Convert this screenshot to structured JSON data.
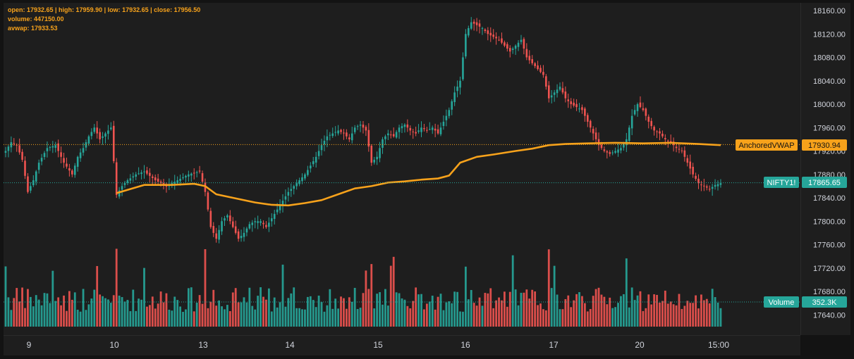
{
  "legend": {
    "ohlc": "open: 17932.65 | high: 17959.90 | low: 17932.65 | close: 17956.50",
    "volume": "volume: 447150.00",
    "avwap": "avwap: 17933.53"
  },
  "colors": {
    "up": "#26a69a",
    "down": "#ef5350",
    "vwap": "#f7a21b",
    "background": "#1e1e1e",
    "text": "#d1d4dc",
    "label_teal": "#26a69a"
  },
  "price_axis": {
    "labels": [
      "18160.00",
      "18120.00",
      "18080.00",
      "18040.00",
      "18000.00",
      "17960.00",
      "17920.00",
      "17880.00",
      "17840.00",
      "17800.00",
      "17760.00",
      "17720.00",
      "17680.00",
      "17640.00"
    ]
  },
  "time_axis": {
    "labels": [
      "9",
      "10",
      "13",
      "14",
      "15",
      "16",
      "17",
      "20",
      "15:00"
    ]
  },
  "badges": {
    "vwap_name": "AnchoredVWAP",
    "vwap_value": "17930.94",
    "symbol_name": "NIFTY1!",
    "symbol_value": "17865.65",
    "volume_name": "Volume",
    "volume_value": "352.3K"
  },
  "chart_data": {
    "type": "candlestick",
    "ylim": [
      17620,
      18170
    ],
    "date_labels": [
      "9",
      "10",
      "13",
      "14",
      "15",
      "16",
      "17",
      "20",
      "15:00"
    ],
    "price_path": [
      [
        0,
        17920
      ],
      [
        2,
        17935
      ],
      [
        4,
        17930
      ],
      [
        6,
        17905
      ],
      [
        8,
        17850
      ],
      [
        10,
        17870
      ],
      [
        12,
        17900
      ],
      [
        15,
        17925
      ],
      [
        18,
        17930
      ],
      [
        21,
        17900
      ],
      [
        24,
        17880
      ],
      [
        26,
        17910
      ],
      [
        28,
        17925
      ],
      [
        30,
        17945
      ],
      [
        32,
        17960
      ],
      [
        34,
        17940
      ],
      [
        36,
        17950
      ],
      [
        38,
        17960
      ],
      [
        40,
        17845
      ],
      [
        42,
        17860
      ],
      [
        44,
        17870
      ],
      [
        47,
        17880
      ],
      [
        50,
        17885
      ],
      [
        54,
        17870
      ],
      [
        58,
        17860
      ],
      [
        62,
        17870
      ],
      [
        66,
        17880
      ],
      [
        70,
        17885
      ],
      [
        72,
        17850
      ],
      [
        74,
        17790
      ],
      [
        76,
        17770
      ],
      [
        78,
        17800
      ],
      [
        80,
        17810
      ],
      [
        82,
        17790
      ],
      [
        84,
        17770
      ],
      [
        86,
        17780
      ],
      [
        88,
        17795
      ],
      [
        90,
        17800
      ],
      [
        92,
        17800
      ],
      [
        94,
        17790
      ],
      [
        96,
        17805
      ],
      [
        100,
        17835
      ],
      [
        102,
        17850
      ],
      [
        104,
        17860
      ],
      [
        106,
        17870
      ],
      [
        108,
        17880
      ],
      [
        110,
        17895
      ],
      [
        112,
        17910
      ],
      [
        114,
        17930
      ],
      [
        116,
        17945
      ],
      [
        118,
        17950
      ],
      [
        120,
        17955
      ],
      [
        122,
        17950
      ],
      [
        124,
        17940
      ],
      [
        126,
        17960
      ],
      [
        128,
        17965
      ],
      [
        130,
        17955
      ],
      [
        132,
        17900
      ],
      [
        134,
        17910
      ],
      [
        136,
        17940
      ],
      [
        138,
        17950
      ],
      [
        140,
        17945
      ],
      [
        142,
        17960
      ],
      [
        144,
        17965
      ],
      [
        146,
        17955
      ],
      [
        148,
        17950
      ],
      [
        150,
        17960
      ],
      [
        152,
        17955
      ],
      [
        154,
        17960
      ],
      [
        156,
        17950
      ],
      [
        158,
        17970
      ],
      [
        160,
        17990
      ],
      [
        162,
        18020
      ],
      [
        164,
        18040
      ],
      [
        166,
        18120
      ],
      [
        168,
        18140
      ],
      [
        170,
        18135
      ],
      [
        172,
        18130
      ],
      [
        174,
        18120
      ],
      [
        176,
        18115
      ],
      [
        178,
        18110
      ],
      [
        180,
        18100
      ],
      [
        182,
        18090
      ],
      [
        184,
        18100
      ],
      [
        186,
        18110
      ],
      [
        188,
        18080
      ],
      [
        190,
        18070
      ],
      [
        192,
        18060
      ],
      [
        194,
        18050
      ],
      [
        196,
        18010
      ],
      [
        198,
        18020
      ],
      [
        200,
        18030
      ],
      [
        202,
        18010
      ],
      [
        204,
        18000
      ],
      [
        206,
        17995
      ],
      [
        208,
        17990
      ],
      [
        210,
        17970
      ],
      [
        212,
        17950
      ],
      [
        214,
        17930
      ],
      [
        216,
        17920
      ],
      [
        218,
        17915
      ],
      [
        220,
        17920
      ],
      [
        222,
        17925
      ],
      [
        224,
        17940
      ],
      [
        226,
        17980
      ],
      [
        228,
        18000
      ],
      [
        230,
        17990
      ],
      [
        232,
        17970
      ],
      [
        234,
        17955
      ],
      [
        236,
        17950
      ],
      [
        238,
        17940
      ],
      [
        240,
        17935
      ],
      [
        242,
        17925
      ],
      [
        244,
        17920
      ],
      [
        246,
        17900
      ],
      [
        248,
        17880
      ],
      [
        250,
        17865
      ],
      [
        252,
        17860
      ],
      [
        254,
        17855
      ],
      [
        256,
        17862
      ],
      [
        258,
        17865
      ]
    ],
    "vwap_anchor_index": 40,
    "vwap_points": [
      [
        40,
        17848
      ],
      [
        50,
        17862
      ],
      [
        60,
        17862
      ],
      [
        68,
        17864
      ],
      [
        72,
        17860
      ],
      [
        76,
        17846
      ],
      [
        82,
        17840
      ],
      [
        90,
        17832
      ],
      [
        96,
        17828
      ],
      [
        102,
        17827
      ],
      [
        108,
        17831
      ],
      [
        114,
        17836
      ],
      [
        120,
        17846
      ],
      [
        126,
        17856
      ],
      [
        132,
        17860
      ],
      [
        138,
        17866
      ],
      [
        144,
        17868
      ],
      [
        150,
        17871
      ],
      [
        156,
        17873
      ],
      [
        160,
        17878
      ],
      [
        164,
        17900
      ],
      [
        170,
        17910
      ],
      [
        176,
        17914
      ],
      [
        184,
        17920
      ],
      [
        190,
        17924
      ],
      [
        196,
        17930
      ],
      [
        202,
        17932
      ],
      [
        210,
        17933
      ],
      [
        220,
        17934
      ],
      [
        230,
        17933
      ],
      [
        240,
        17934
      ],
      [
        250,
        17932
      ],
      [
        258,
        17930
      ]
    ],
    "last_price": 17865.65,
    "last_vwap": 17930.94,
    "last_volume": "352.3K",
    "volume_scale_max": 700000
  }
}
